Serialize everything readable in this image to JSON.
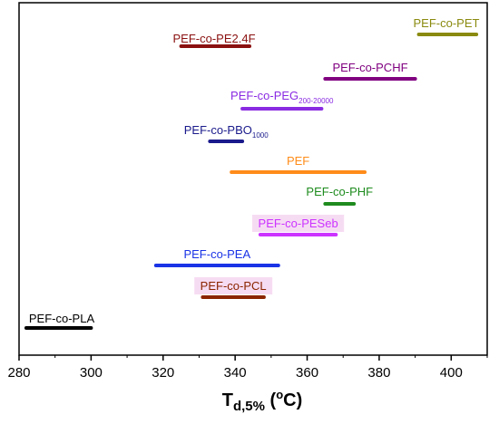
{
  "chart_data": {
    "type": "range-bar",
    "xlabel": {
      "main": "T",
      "sub": "d,5%",
      "unit_open": " (",
      "unit_sup": "o",
      "unit_close": "C)"
    },
    "xlim": [
      280,
      410
    ],
    "xticks": [
      "280",
      "300",
      "320",
      "340",
      "360",
      "380",
      "400"
    ],
    "grid": false,
    "legend": "none",
    "series": [
      {
        "name": "PEF-co-PET",
        "sub": "",
        "start": 391,
        "end": 407,
        "color": "#8a8a10"
      },
      {
        "name": "PEF-co-PE2.4F",
        "sub": "",
        "start": 325,
        "end": 344,
        "color": "#8b1010"
      },
      {
        "name": "PEF-co-PCHF",
        "sub": "",
        "start": 365,
        "end": 390,
        "color": "#800080"
      },
      {
        "name": "PEF-co-PEG",
        "sub": "200-20000",
        "start": 342,
        "end": 364,
        "color": "#8a2be2"
      },
      {
        "name": "PEF-co-PBO",
        "sub": "1000",
        "start": 333,
        "end": 342,
        "color": "#1a1a8c"
      },
      {
        "name": "PEF",
        "sub": "",
        "start": 339,
        "end": 376,
        "color": "#ff8c1a"
      },
      {
        "name": "PEF-co-PHF",
        "sub": "",
        "start": 365,
        "end": 373,
        "color": "#1e8b1e"
      },
      {
        "name": "PEF-co-PESeb",
        "sub": "",
        "start": 347,
        "end": 368,
        "color": "#cc33ff"
      },
      {
        "name": "PEF-co-PEA",
        "sub": "",
        "start": 318,
        "end": 352,
        "color": "#1a33e6"
      },
      {
        "name": "PEF-co-PCL",
        "sub": "",
        "start": 331,
        "end": 348,
        "color": "#8b2500"
      },
      {
        "name": "PEF-co-PLA",
        "sub": "",
        "start": 282,
        "end": 300,
        "color": "#000000"
      }
    ]
  }
}
